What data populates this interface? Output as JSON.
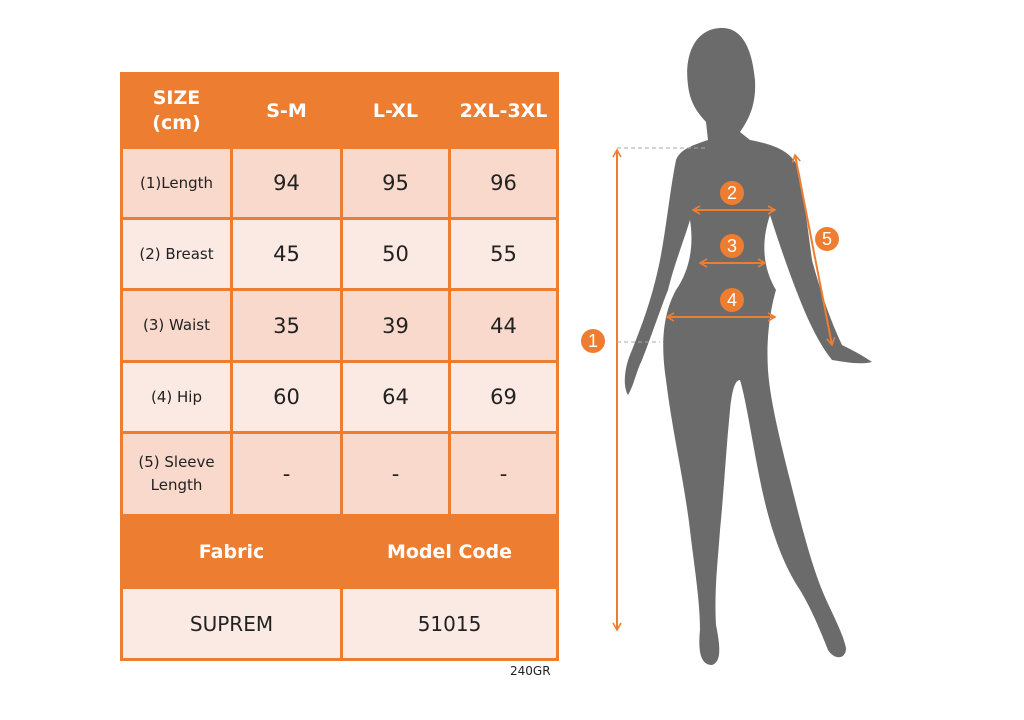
{
  "table": {
    "header": [
      "SIZE\n(cm)",
      "S-M",
      "L-XL",
      "2XL-3XL"
    ],
    "header_first_lines": [
      "SIZE",
      "(cm)"
    ],
    "rows": [
      {
        "label": [
          "(1)Length"
        ],
        "values": [
          "94",
          "95",
          "96"
        ]
      },
      {
        "label": [
          "(2) Breast"
        ],
        "values": [
          "45",
          "50",
          "55"
        ]
      },
      {
        "label": [
          "(3) Waist"
        ],
        "values": [
          "35",
          "39",
          "44"
        ]
      },
      {
        "label": [
          "(4) Hip"
        ],
        "values": [
          "60",
          "64",
          "69"
        ]
      },
      {
        "label": [
          "(5) Sleeve",
          "Length"
        ],
        "values": [
          "-",
          "-",
          "-"
        ]
      }
    ],
    "footer_header": [
      "Fabric",
      "Model Code"
    ],
    "footer_values": [
      "SUPREM",
      "51015"
    ]
  },
  "note": "240GR",
  "figure": {
    "markers": [
      "1",
      "2",
      "3",
      "4",
      "5"
    ]
  },
  "colors": {
    "accent": "#ed7d31",
    "row_dark": "#f8d9cc",
    "row_light": "#fbeae3",
    "silhouette": "#6b6b6b"
  }
}
